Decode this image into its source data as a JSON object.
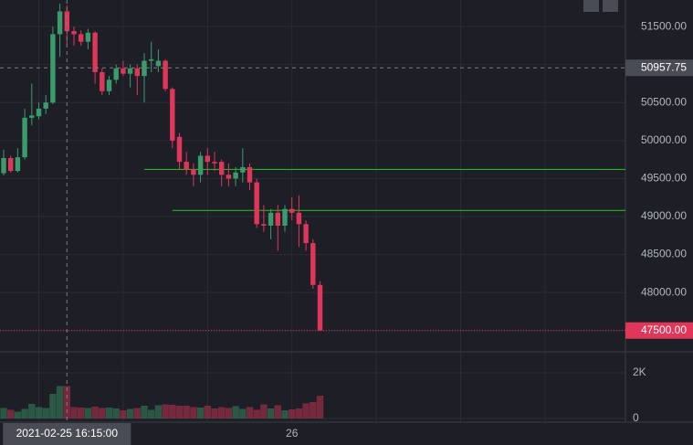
{
  "chart_data": {
    "type": "candlestick",
    "categories": [
      null,
      null,
      null,
      null,
      null,
      null,
      null,
      null,
      null,
      null,
      null,
      null,
      null,
      null,
      null,
      null,
      null,
      null,
      null,
      null,
      null,
      null,
      null,
      null,
      null,
      null,
      null,
      null,
      null,
      null,
      null,
      null,
      null,
      null,
      null,
      null,
      null,
      null,
      null,
      null,
      null,
      "26",
      null,
      null,
      null,
      null
    ],
    "open": [
      49570,
      49770,
      49600,
      49780,
      50300,
      50320,
      50420,
      50500,
      51400,
      51700,
      51440,
      51400,
      51300,
      51420,
      50900,
      50650,
      50800,
      50950,
      50880,
      50950,
      50850,
      51050,
      50980,
      51050,
      50680,
      50050,
      49720,
      49620,
      49550,
      49800,
      49720,
      49720,
      49550,
      49500,
      49580,
      49650,
      49450,
      48900,
      48880,
      49050,
      48880,
      49100,
      49050,
      48900,
      48650,
      48100
    ],
    "high": [
      49880,
      49800,
      49900,
      50420,
      50750,
      50500,
      50600,
      51500,
      51800,
      51780,
      51500,
      51450,
      51470,
      51440,
      50950,
      50850,
      51000,
      51050,
      51000,
      51000,
      51150,
      51300,
      51200,
      51070,
      50700,
      50100,
      49850,
      49700,
      49850,
      49900,
      49850,
      49750,
      49700,
      49650,
      49900,
      49700,
      49500,
      49150,
      49100,
      49150,
      49150,
      49250,
      49280,
      48950,
      48700,
      48150
    ],
    "low": [
      49540,
      49580,
      49580,
      49750,
      50200,
      50280,
      50350,
      50480,
      51100,
      51250,
      51250,
      51250,
      51200,
      50750,
      50600,
      50600,
      50750,
      50850,
      50700,
      50600,
      50500,
      50900,
      50900,
      50650,
      49900,
      49620,
      49550,
      49400,
      49450,
      49550,
      49600,
      49400,
      49400,
      49400,
      49450,
      49350,
      48850,
      48800,
      48700,
      48550,
      48800,
      48950,
      48600,
      48550,
      48050,
      47500
    ],
    "close": [
      49770,
      49600,
      49780,
      50300,
      50330,
      50420,
      50500,
      51400,
      51700,
      51440,
      51400,
      51300,
      51420,
      50900,
      50650,
      50800,
      50950,
      50880,
      50950,
      50850,
      51050,
      51070,
      51050,
      50680,
      50000,
      49720,
      49620,
      49550,
      49800,
      49720,
      49700,
      49550,
      49500,
      49580,
      49650,
      49450,
      48900,
      48880,
      49050,
      48880,
      49100,
      49050,
      48900,
      48650,
      48100,
      47500
    ],
    "volume": [
      460,
      380,
      300,
      420,
      640,
      500,
      460,
      1080,
      1420,
      1420,
      500,
      480,
      460,
      520,
      460,
      480,
      440,
      360,
      420,
      460,
      560,
      380,
      580,
      620,
      600,
      560,
      560,
      500,
      480,
      560,
      440,
      500,
      460,
      540,
      420,
      500,
      380,
      620,
      440,
      580,
      360,
      400,
      440,
      660,
      720,
      1000
    ],
    "up_color": "#3c9b6c",
    "down_color": "#e0365a",
    "ylim": [
      47220,
      51850
    ],
    "yticks": [
      {
        "value": 47500,
        "label": "47500.00"
      },
      {
        "value": 48000,
        "label": "48000.00"
      },
      {
        "value": 48500,
        "label": "48500.00"
      },
      {
        "value": 49000,
        "label": "49000.00"
      },
      {
        "value": 49500,
        "label": "49500.00"
      },
      {
        "value": 50000,
        "label": "50000.00"
      },
      {
        "value": 50500,
        "label": "50500.00"
      },
      {
        "value": 51000,
        "label": "51000.00"
      },
      {
        "value": 51500,
        "label": "51500.00"
      }
    ],
    "volume_ylim": [
      0,
      2920
    ],
    "volume_yticks": [
      0,
      {
        "value": 2000,
        "label": "2K"
      }
    ],
    "hlines": [
      {
        "value": 49620,
        "from_index": 20,
        "color": "#1fb51f"
      },
      {
        "value": 49080,
        "from_index": 24,
        "color": "#1fb51f"
      }
    ],
    "last_price": {
      "value": 47500,
      "label": "47500.00"
    },
    "crosshair": {
      "index": 9,
      "value": 50957.75,
      "x_label": "2021-02-25 16:15:00",
      "y_label": "50957.75"
    },
    "grid": true
  }
}
